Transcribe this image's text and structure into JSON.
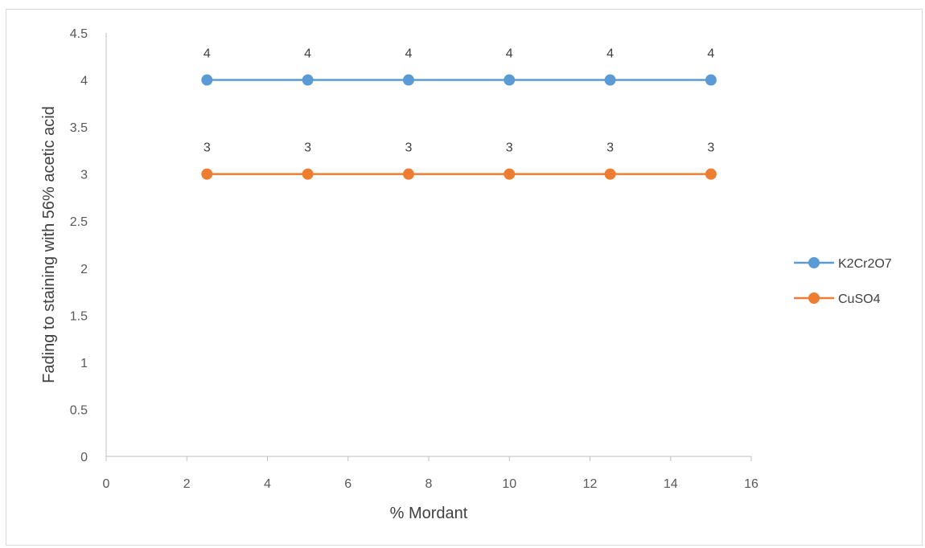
{
  "chart_data": {
    "type": "line",
    "title": "",
    "xlabel": "% Mordant",
    "ylabel": "Fading to staining with 56% acetic acid",
    "xlim": [
      0,
      16
    ],
    "ylim": [
      0,
      4.5
    ],
    "x_ticks": [
      "0",
      "2",
      "4",
      "6",
      "8",
      "10",
      "12",
      "14",
      "16"
    ],
    "y_ticks": [
      "0",
      "0.5",
      "1",
      "1.5",
      "2",
      "2.5",
      "3",
      "3.5",
      "4",
      "4.5"
    ],
    "grid": false,
    "legend_position": "right",
    "data_labels": true,
    "x": [
      2.5,
      5,
      7.5,
      10,
      12.5,
      15
    ],
    "series": [
      {
        "name": "K2Cr2O7",
        "color": "#5b9bd5",
        "values": [
          4,
          4,
          4,
          4,
          4,
          4
        ],
        "labels": [
          "4",
          "4",
          "4",
          "4",
          "4",
          "4"
        ]
      },
      {
        "name": "CuSO4",
        "color": "#ed7d31",
        "values": [
          3,
          3,
          3,
          3,
          3,
          3
        ],
        "labels": [
          "3",
          "3",
          "3",
          "3",
          "3",
          "3"
        ]
      }
    ]
  }
}
